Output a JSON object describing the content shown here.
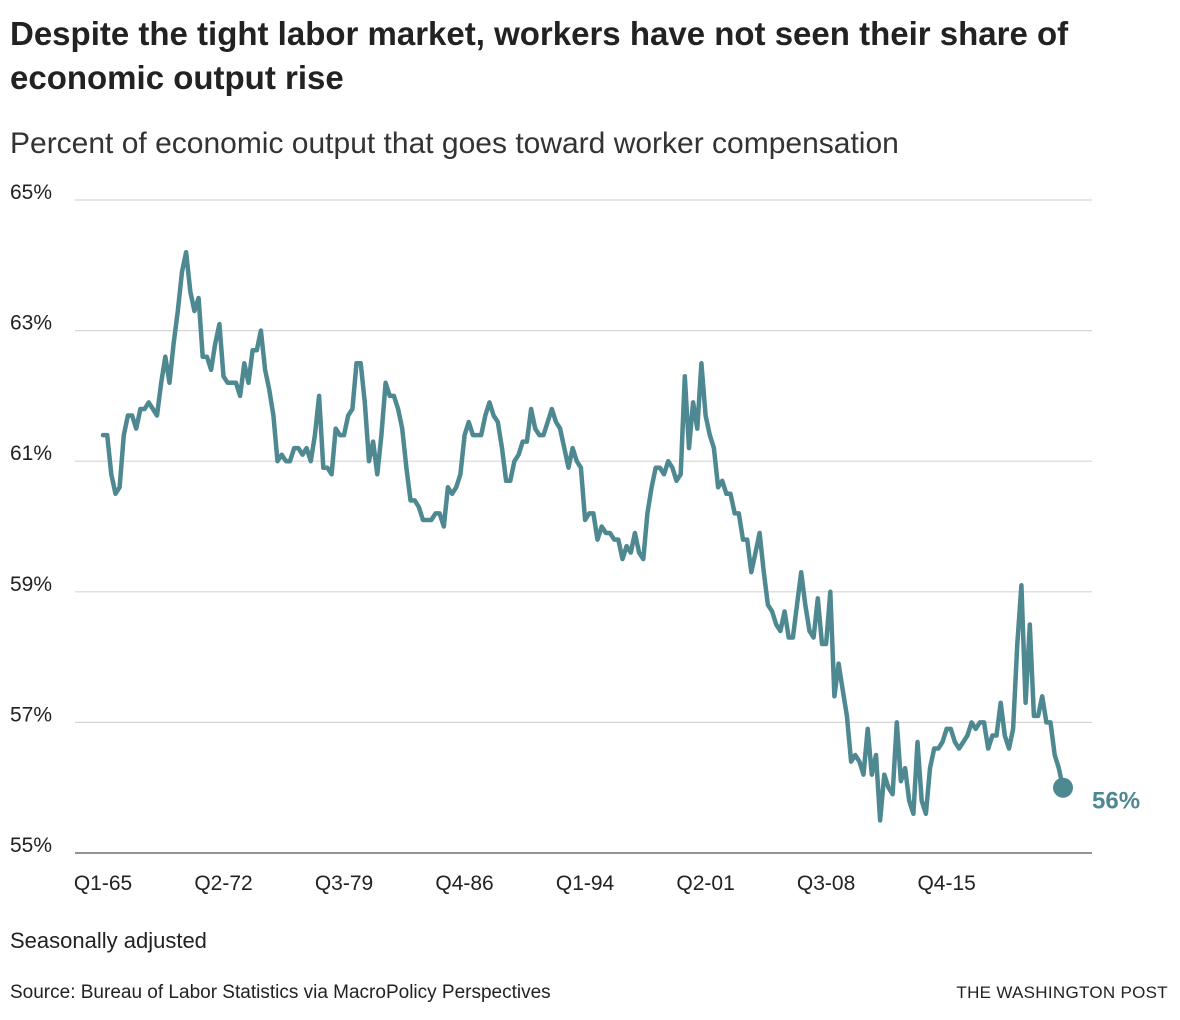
{
  "header": {
    "title": "Despite the tight labor market, workers have not seen their share of economic output rise",
    "subtitle": "Percent of economic output that goes toward worker compensation"
  },
  "footer": {
    "note": "Seasonally adjusted",
    "source": "Source: Bureau of Labor Statistics via MacroPolicy Perspectives",
    "brand": "THE WASHINGTON POST"
  },
  "chart_data": {
    "type": "line",
    "title": "Despite the tight labor market, workers have not seen their share of economic output rise",
    "subtitle": "Percent of economic output that goes toward worker compensation",
    "ylim": [
      55,
      65
    ],
    "yticks": [
      55,
      57,
      59,
      61,
      63,
      65
    ],
    "ytick_labels": [
      "55%",
      "57%",
      "59%",
      "61%",
      "63%",
      "65%"
    ],
    "x_tick_labels": [
      "Q1-65",
      "Q2-72",
      "Q3-79",
      "Q4-86",
      "Q1-94",
      "Q2-01",
      "Q3-08",
      "Q4-15"
    ],
    "x_tick_positions": [
      0,
      29,
      58,
      87,
      116,
      145,
      174,
      203
    ],
    "grid": true,
    "line_color": "#4e8891",
    "end_label": "56%",
    "series": [
      {
        "values": [
          61.4,
          61.4,
          60.8,
          60.5,
          60.6,
          61.4,
          61.7,
          61.7,
          61.5,
          61.8,
          61.8,
          61.9,
          61.8,
          61.7,
          62.2,
          62.6,
          62.2,
          62.8,
          63.3,
          63.9,
          64.2,
          63.6,
          63.3,
          63.5,
          62.6,
          62.6,
          62.4,
          62.8,
          63.1,
          62.3,
          62.2,
          62.2,
          62.2,
          62.0,
          62.5,
          62.2,
          62.7,
          62.7,
          63.0,
          62.4,
          62.1,
          61.7,
          61.0,
          61.1,
          61.0,
          61.0,
          61.2,
          61.2,
          61.1,
          61.2,
          61.0,
          61.4,
          62.0,
          60.9,
          60.9,
          60.8,
          61.5,
          61.4,
          61.4,
          61.7,
          61.8,
          62.5,
          62.5,
          61.9,
          61.0,
          61.3,
          60.8,
          61.4,
          62.2,
          62.0,
          62.0,
          61.8,
          61.5,
          60.9,
          60.4,
          60.4,
          60.3,
          60.1,
          60.1,
          60.1,
          60.2,
          60.2,
          60.0,
          60.6,
          60.5,
          60.6,
          60.8,
          61.4,
          61.6,
          61.4,
          61.4,
          61.4,
          61.7,
          61.9,
          61.7,
          61.6,
          61.2,
          60.7,
          60.7,
          61.0,
          61.1,
          61.3,
          61.3,
          61.8,
          61.5,
          61.4,
          61.4,
          61.6,
          61.8,
          61.6,
          61.5,
          61.2,
          60.9,
          61.2,
          61.0,
          60.9,
          60.1,
          60.2,
          60.2,
          59.8,
          60.0,
          59.9,
          59.9,
          59.8,
          59.8,
          59.5,
          59.7,
          59.6,
          59.9,
          59.6,
          59.5,
          60.2,
          60.6,
          60.9,
          60.9,
          60.8,
          61.0,
          60.9,
          60.7,
          60.8,
          62.3,
          61.2,
          61.9,
          61.5,
          62.5,
          61.7,
          61.4,
          61.2,
          60.6,
          60.7,
          60.5,
          60.5,
          60.2,
          60.2,
          59.8,
          59.8,
          59.3,
          59.6,
          59.9,
          59.3,
          58.8,
          58.7,
          58.5,
          58.4,
          58.7,
          58.3,
          58.3,
          58.8,
          59.3,
          58.8,
          58.4,
          58.3,
          58.9,
          58.2,
          58.2,
          59.0,
          57.4,
          57.9,
          57.5,
          57.1,
          56.4,
          56.5,
          56.4,
          56.2,
          56.9,
          56.2,
          56.5,
          55.5,
          56.2,
          56.0,
          55.9,
          57.0,
          56.1,
          56.3,
          55.8,
          55.6,
          56.7,
          55.8,
          55.6,
          56.3,
          56.6,
          56.6,
          56.7,
          56.9,
          56.9,
          56.7,
          56.6,
          56.7,
          56.8,
          57.0,
          56.9,
          57.0,
          57.0,
          56.6,
          56.8,
          56.8,
          57.3,
          56.8,
          56.6,
          56.9,
          58.2,
          59.1,
          57.3,
          58.5,
          57.1,
          57.1,
          57.4,
          57.0,
          57.0,
          56.5,
          56.3,
          56.0
        ]
      }
    ]
  }
}
